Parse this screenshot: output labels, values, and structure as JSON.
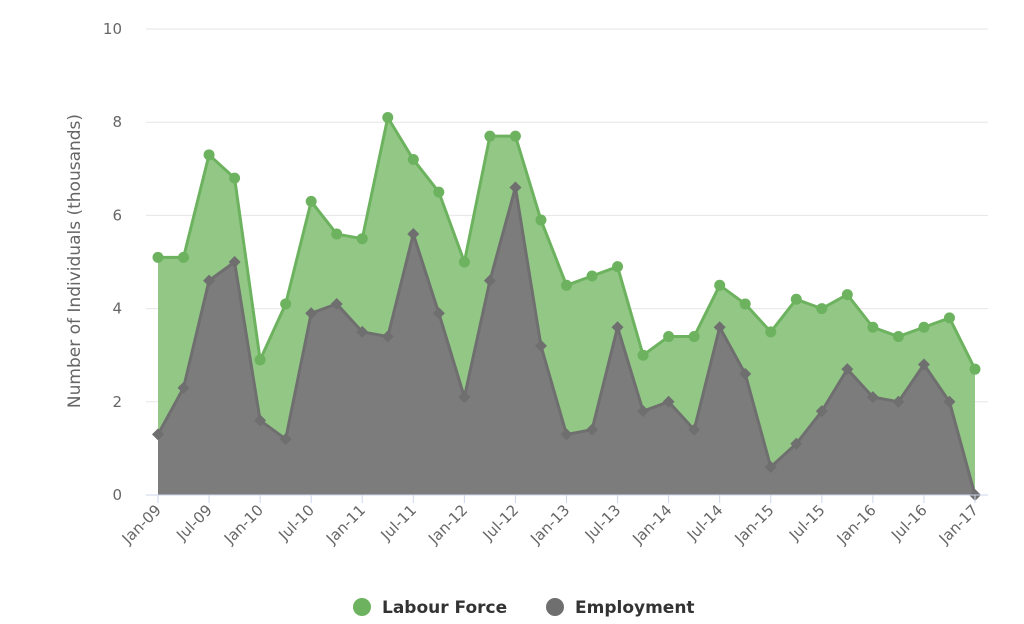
{
  "chart_data": {
    "type": "area",
    "title": "",
    "xlabel": "",
    "ylabel": "Number of Individuals (thousands)",
    "ylim": [
      0,
      10
    ],
    "yticks": [
      0,
      2,
      4,
      6,
      8,
      10
    ],
    "grid": true,
    "legend_position": "bottom-center",
    "x_tick_labels": [
      "Jan-09",
      "Jul-09",
      "Jan-10",
      "Jul-10",
      "Jan-11",
      "Jul-11",
      "Jan-12",
      "Jul-12",
      "Jan-13",
      "Jul-13",
      "Jan-14",
      "Jul-14",
      "Jan-15",
      "Jul-15",
      "Jan-16",
      "Jul-16",
      "Jan-17"
    ],
    "x": [
      "Jan-09",
      "Apr-09",
      "Jul-09",
      "Oct-09",
      "Jan-10",
      "Apr-10",
      "Jul-10",
      "Oct-10",
      "Jan-11",
      "Apr-11",
      "Jul-11",
      "Oct-11",
      "Jan-12",
      "Apr-12",
      "Jul-12",
      "Oct-12",
      "Jan-13",
      "Apr-13",
      "Jul-13",
      "Oct-13",
      "Jan-14",
      "Apr-14",
      "Jul-14",
      "Oct-14",
      "Jan-15",
      "Apr-15",
      "Jul-15",
      "Oct-15",
      "Jan-16",
      "Apr-16",
      "Jul-16",
      "Oct-16",
      "Jan-17"
    ],
    "series": [
      {
        "name": "Labour Force",
        "color": "#6db35f",
        "fill": "#8cc47f",
        "marker": "circle",
        "values": [
          5.1,
          5.1,
          7.3,
          6.8,
          2.9,
          4.1,
          6.3,
          5.6,
          5.5,
          8.1,
          7.2,
          6.5,
          5.0,
          7.7,
          7.7,
          5.9,
          4.5,
          4.7,
          4.9,
          3.0,
          3.4,
          3.4,
          4.5,
          4.1,
          3.5,
          4.2,
          4.0,
          4.3,
          3.6,
          3.4,
          3.6,
          3.8,
          2.7
        ]
      },
      {
        "name": "Employment",
        "color": "#6f6f6f",
        "fill": "#7c7c7c",
        "marker": "diamond",
        "values": [
          1.3,
          2.3,
          4.6,
          5.0,
          1.6,
          1.2,
          3.9,
          4.1,
          3.5,
          3.4,
          5.6,
          3.9,
          2.1,
          4.6,
          6.6,
          3.2,
          1.3,
          1.4,
          3.6,
          1.8,
          2.0,
          1.4,
          3.6,
          2.6,
          0.6,
          1.1,
          1.8,
          2.7,
          2.1,
          2.0,
          2.8,
          2.0,
          0.0
        ]
      }
    ]
  }
}
